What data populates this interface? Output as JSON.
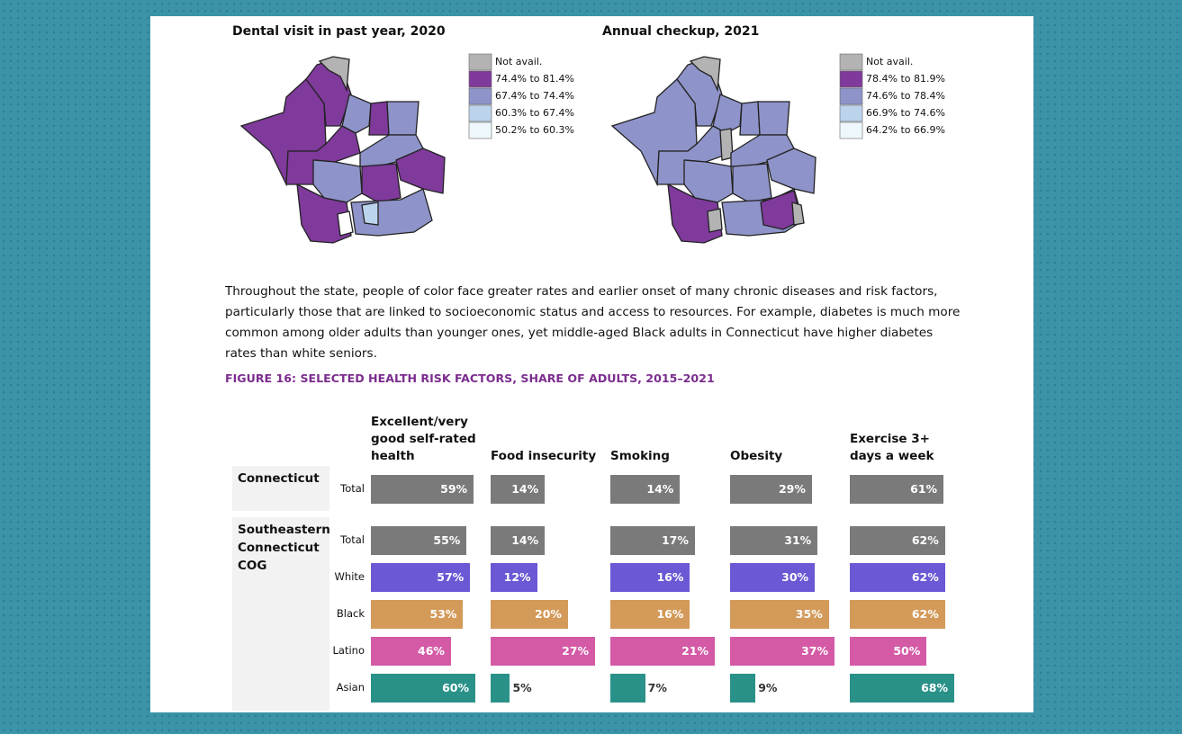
{
  "maps": [
    {
      "title": "Dental visit in past year, 2020",
      "legend": [
        {
          "label": "Not avail.",
          "color": "#b3b3b3"
        },
        {
          "label": "74.4% to 81.4%",
          "color": "#7f3a9c"
        },
        {
          "label": "67.4% to 74.4%",
          "color": "#8e93c9"
        },
        {
          "label": "60.3% to 67.4%",
          "color": "#bcd3ec"
        },
        {
          "label": "50.2% to 60.3%",
          "color": "#eef7fb"
        }
      ]
    },
    {
      "title": "Annual checkup, 2021",
      "legend": [
        {
          "label": "Not avail.",
          "color": "#b3b3b3"
        },
        {
          "label": "78.4% to 81.9%",
          "color": "#7f3a9c"
        },
        {
          "label": "74.6% to 78.4%",
          "color": "#8e93c9"
        },
        {
          "label": "66.9% to 74.6%",
          "color": "#bcd3ec"
        },
        {
          "label": "64.2% to 66.9%",
          "color": "#eef7fb"
        }
      ]
    }
  ],
  "paragraph": "Throughout the state, people of color face greater rates and earlier onset of many chronic diseases and risk factors, particularly those that are linked to socioeconomic status and access to resources. For example, diabetes is much more common among older adults than younger ones, yet middle-aged Black adults in Connecticut have higher diabetes rates than white seniors.",
  "chart_data": {
    "type": "bar",
    "title": "FIGURE 16: SELECTED HEALTH RISK FACTORS, SHARE OF ADULTS, 2015–2021",
    "columns": [
      "Excellent/very good self-rated health",
      "Food insecurity",
      "Smoking",
      "Obesity",
      "Exercise 3+ days a week"
    ],
    "groups": [
      {
        "name": "Connecticut",
        "rows": [
          {
            "name": "Total",
            "color": "#7a7a7a",
            "values": [
              59,
              14,
              14,
              29,
              61
            ],
            "value_labels": [
              "59%",
              "14%",
              "14%",
              "29%",
              "61%"
            ]
          }
        ]
      },
      {
        "name": "Southeastern Connecticut COG",
        "rows": [
          {
            "name": "Total",
            "color": "#7a7a7a",
            "values": [
              55,
              14,
              17,
              31,
              62
            ],
            "value_labels": [
              "55%",
              "14%",
              "17%",
              "31%",
              "62%"
            ]
          },
          {
            "name": "White",
            "color": "#6a58d4",
            "values": [
              57,
              12,
              16,
              30,
              62
            ],
            "value_labels": [
              "57%",
              "12%",
              "16%",
              "30%",
              "62%"
            ]
          },
          {
            "name": "Black",
            "color": "#d39a5a",
            "values": [
              53,
              20,
              16,
              35,
              62
            ],
            "value_labels": [
              "53%",
              "20%",
              "16%",
              "35%",
              "62%"
            ]
          },
          {
            "name": "Latino",
            "color": "#d45aa6",
            "values": [
              46,
              27,
              21,
              37,
              50
            ],
            "value_labels": [
              "46%",
              "27%",
              "21%",
              "37%",
              "50%"
            ]
          },
          {
            "name": "Asian",
            "color": "#2a9189",
            "values": [
              60,
              5,
              7,
              9,
              68
            ],
            "value_labels": [
              "60%",
              "5%",
              "7%",
              "9%",
              "68%"
            ]
          }
        ]
      }
    ]
  }
}
